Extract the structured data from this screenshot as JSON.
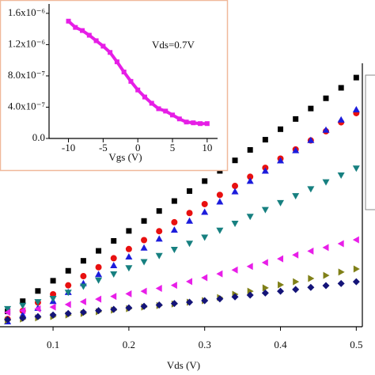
{
  "chart_data": [
    {
      "type": "scatter",
      "xlabel": "Vds (V)",
      "x": [
        0.04,
        0.06,
        0.08,
        0.1,
        0.12,
        0.14,
        0.16,
        0.18,
        0.2,
        0.22,
        0.24,
        0.26,
        0.28,
        0.3,
        0.32,
        0.34,
        0.36,
        0.38,
        0.4,
        0.42,
        0.44,
        0.46,
        0.48,
        0.5
      ],
      "xlim": [
        0.03,
        0.508
      ],
      "xticks": [
        0.1,
        0.2,
        0.3,
        0.4,
        0.5
      ],
      "ylim": [
        0,
        1
      ],
      "series": [
        {
          "color": "#000000",
          "marker": "square",
          "values": [
            0.06,
            0.1,
            0.14,
            0.18,
            0.219,
            0.258,
            0.297,
            0.336,
            0.375,
            0.414,
            0.453,
            0.492,
            0.531,
            0.57,
            0.61,
            0.651,
            0.692,
            0.732,
            0.773,
            0.813,
            0.854,
            0.894,
            0.935,
            0.975
          ]
        },
        {
          "color": "#e81010",
          "marker": "circle",
          "values": [
            0.03,
            0.062,
            0.095,
            0.127,
            0.162,
            0.198,
            0.233,
            0.268,
            0.304,
            0.339,
            0.374,
            0.409,
            0.445,
            0.48,
            0.516,
            0.551,
            0.587,
            0.622,
            0.658,
            0.694,
            0.729,
            0.765,
            0.8,
            0.836
          ]
        },
        {
          "color": "#1c1cdc",
          "marker": "triangle-up",
          "values": [
            0.02,
            0.047,
            0.073,
            0.1,
            0.135,
            0.17,
            0.205,
            0.24,
            0.274,
            0.309,
            0.344,
            0.379,
            0.414,
            0.449,
            0.489,
            0.529,
            0.57,
            0.61,
            0.65,
            0.69,
            0.73,
            0.77,
            0.81,
            0.85
          ]
        },
        {
          "color": "#178080",
          "marker": "triangle-down",
          "values": [
            0.07,
            0.083,
            0.097,
            0.11,
            0.134,
            0.158,
            0.182,
            0.206,
            0.23,
            0.254,
            0.278,
            0.302,
            0.326,
            0.35,
            0.377,
            0.404,
            0.431,
            0.458,
            0.485,
            0.512,
            0.539,
            0.566,
            0.593,
            0.62
          ]
        },
        {
          "color": "#e81ee8",
          "marker": "triangle-left",
          "values": [
            0.056,
            0.063,
            0.07,
            0.077,
            0.087,
            0.098,
            0.108,
            0.119,
            0.129,
            0.139,
            0.15,
            0.162,
            0.177,
            0.192,
            0.207,
            0.222,
            0.236,
            0.251,
            0.266,
            0.281,
            0.296,
            0.31,
            0.325,
            0.34
          ]
        },
        {
          "color": "#808018",
          "marker": "triangle-right",
          "values": [
            0.025,
            0.03,
            0.035,
            0.04,
            0.046,
            0.052,
            0.059,
            0.065,
            0.071,
            0.077,
            0.083,
            0.089,
            0.096,
            0.102,
            0.114,
            0.127,
            0.139,
            0.152,
            0.164,
            0.176,
            0.189,
            0.201,
            0.214,
            0.226
          ]
        },
        {
          "color": "#141478",
          "marker": "diamond",
          "values": [
            0.028,
            0.034,
            0.04,
            0.046,
            0.052,
            0.057,
            0.063,
            0.068,
            0.074,
            0.08,
            0.085,
            0.091,
            0.096,
            0.102,
            0.109,
            0.117,
            0.124,
            0.132,
            0.139,
            0.146,
            0.154,
            0.161,
            0.169,
            0.176
          ]
        }
      ]
    },
    {
      "type": "line",
      "xlabel": "Vgs (V)",
      "annotation": "Vds=0.7V",
      "x": [
        -10,
        -9,
        -8,
        -7,
        -6,
        -5,
        -4,
        -3,
        -2,
        -1,
        0,
        1,
        2,
        3,
        4,
        5,
        6,
        7,
        8,
        9,
        10
      ],
      "xlim": [
        -12.8,
        11.5
      ],
      "xticks": [
        -10,
        -5,
        0,
        5,
        10
      ],
      "ylim": [
        0,
        1.72e-06
      ],
      "yticks": [
        {
          "value": 0,
          "label": "0.0"
        },
        {
          "value": 4e-07,
          "label": "4.0x10⁻⁷"
        },
        {
          "value": 8e-07,
          "label": "8.0x10⁻⁷"
        },
        {
          "value": 1.2e-06,
          "label": "1.2x10⁻⁶"
        },
        {
          "value": 1.6e-06,
          "label": "1.6x10⁻⁶"
        }
      ],
      "series": [
        {
          "color": "#e61ee6",
          "values": [
            1.5e-06,
            1.42e-06,
            1.38e-06,
            1.32e-06,
            1.25e-06,
            1.18e-06,
            1.1e-06,
            9.8e-07,
            8.5e-07,
            7.3e-07,
            6.2e-07,
            5.3e-07,
            4.5e-07,
            3.8e-07,
            3.5e-07,
            3e-07,
            2.5e-07,
            2.1e-07,
            2e-07,
            1.9e-07,
            1.9e-07
          ]
        }
      ]
    }
  ]
}
